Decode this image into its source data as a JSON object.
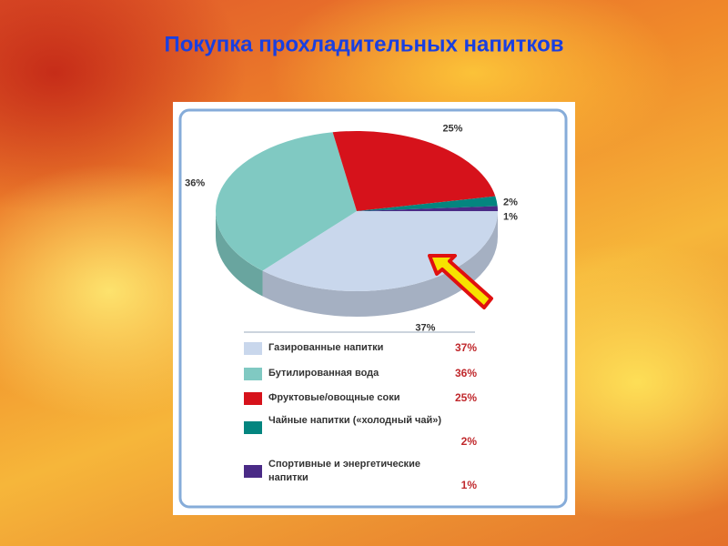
{
  "chart_data": {
    "type": "pie",
    "title": "Покупка прохладительных напитков",
    "categories": [
      "Газированные напитки",
      "Бутилированная вода",
      "Фруктовые/овощные соки",
      "Чайные напитки («холодный чай»)",
      "Спортивные и энергетические напитки"
    ],
    "values": [
      37,
      36,
      25,
      2,
      1
    ],
    "value_labels": [
      "37%",
      "36%",
      "25%",
      "2%",
      "1%"
    ],
    "colors": [
      "#c9d7ec",
      "#80c9c2",
      "#d6121b",
      "#04857f",
      "#4a2a86"
    ]
  }
}
